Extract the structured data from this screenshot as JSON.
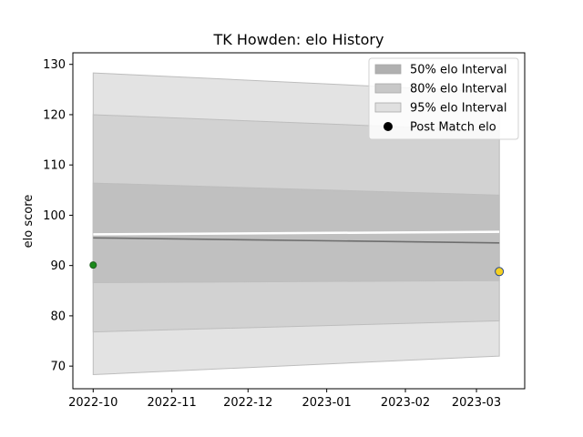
{
  "chart_data": {
    "type": "area",
    "title": "TK Howden: elo History",
    "xlabel": "",
    "ylabel": "elo score",
    "xlim": [
      "2022-09-23",
      "2023-03-20"
    ],
    "ylim": [
      65.5,
      132.3
    ],
    "x_ticks": [
      "2022-10",
      "2022-11",
      "2022-12",
      "2023-01",
      "2023-02",
      "2023-03"
    ],
    "y_ticks": [
      70,
      80,
      90,
      100,
      110,
      120,
      130
    ],
    "grid": false,
    "legend": {
      "placement": "top-right",
      "entries": [
        {
          "label": "50% elo Interval",
          "kind": "patch",
          "color": "#b0b0b0"
        },
        {
          "label": "80% elo Interval",
          "kind": "patch",
          "color": "#c8c8c8"
        },
        {
          "label": "95% elo Interval",
          "kind": "patch",
          "color": "#e0e0e0"
        },
        {
          "label": "Post Match elo",
          "kind": "marker",
          "color": "#000000"
        }
      ]
    },
    "x": [
      "2022-10-01",
      "2023-03-10"
    ],
    "mean": [
      95.5,
      94.5
    ],
    "bands": [
      {
        "name": "95% elo Interval",
        "color": "#e3e3e3",
        "lower": [
          68.3,
          72.0
        ],
        "upper": [
          128.3,
          124.5
        ]
      },
      {
        "name": "80% elo Interval",
        "color": "#d2d2d2",
        "lower": [
          76.8,
          79.0
        ],
        "upper": [
          120.0,
          116.8
        ]
      },
      {
        "name": "50% elo Interval",
        "color": "#c0c0c0",
        "lower": [
          86.6,
          87.0
        ],
        "upper": [
          106.4,
          104.0
        ]
      }
    ],
    "gap": [
      96.2,
      96.7
    ],
    "points": [
      {
        "name": "Post Match elo",
        "x": "2022-10-01",
        "y": 90.1,
        "color": "#1a8a1a",
        "edge": "#1f5f1f",
        "size": "small"
      },
      {
        "name": "Post Match elo",
        "x": "2023-03-10",
        "y": 88.8,
        "color": "#f5d020",
        "edge": "#2a4a8a",
        "size": "large"
      }
    ]
  }
}
